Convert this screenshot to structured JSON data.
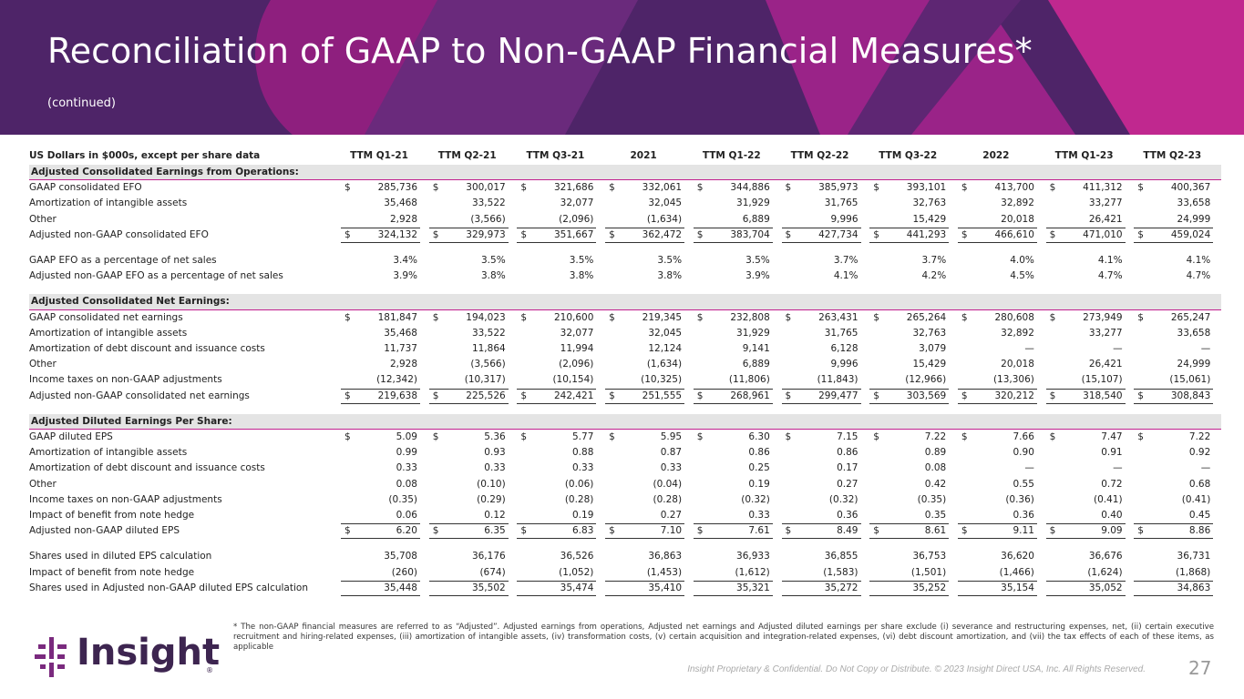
{
  "header": {
    "title": "Reconciliation of GAAP to Non-GAAP Financial Measures*",
    "subtitle": "(continued)"
  },
  "table": {
    "columns": [
      "US Dollars in $000s, except per share data",
      "TTM Q1-21",
      "TTM Q2-21",
      "TTM Q3-21",
      "2021",
      "TTM Q1-22",
      "TTM Q2-22",
      "TTM Q3-22",
      "2022",
      "TTM Q1-23",
      "TTM Q2-23"
    ],
    "groups": [
      {
        "title": "Adjusted Consolidated Earnings from Operations:",
        "rows": [
          {
            "label": "GAAP consolidated EFO",
            "prefix": "$",
            "values": [
              "285,736",
              "300,017",
              "321,686",
              "332,061",
              "344,886",
              "385,973",
              "393,101",
              "413,700",
              "411,312",
              "400,367"
            ]
          },
          {
            "label": "Amortization of intangible assets",
            "values": [
              "35,468",
              "33,522",
              "32,077",
              "32,045",
              "31,929",
              "31,765",
              "32,763",
              "32,892",
              "33,277",
              "33,658"
            ]
          },
          {
            "label": "Other",
            "values": [
              "2,928",
              "(3,566)",
              "(2,096)",
              "(1,634)",
              "6,889",
              "9,996",
              "15,429",
              "20,018",
              "26,421",
              "24,999"
            ]
          },
          {
            "label": "Adjusted non-GAAP consolidated EFO",
            "prefix": "$",
            "total": true,
            "values": [
              "324,132",
              "329,973",
              "351,667",
              "362,472",
              "383,704",
              "427,734",
              "441,293",
              "466,610",
              "471,010",
              "459,024"
            ]
          }
        ]
      },
      {
        "rows": [
          {
            "label": "GAAP EFO as a percentage of net sales",
            "values": [
              "3.4%",
              "3.5%",
              "3.5%",
              "3.5%",
              "3.5%",
              "3.7%",
              "3.7%",
              "4.0%",
              "4.1%",
              "4.1%"
            ]
          },
          {
            "label": "Adjusted non-GAAP EFO as a percentage of net sales",
            "values": [
              "3.9%",
              "3.8%",
              "3.8%",
              "3.8%",
              "3.9%",
              "4.1%",
              "4.2%",
              "4.5%",
              "4.7%",
              "4.7%"
            ]
          }
        ]
      },
      {
        "title": "Adjusted Consolidated Net Earnings:",
        "rows": [
          {
            "label": "GAAP consolidated net earnings",
            "prefix": "$",
            "values": [
              "181,847",
              "194,023",
              "210,600",
              "219,345",
              "232,808",
              "263,431",
              "265,264",
              "280,608",
              "273,949",
              "265,247"
            ]
          },
          {
            "label": "Amortization of intangible assets",
            "values": [
              "35,468",
              "33,522",
              "32,077",
              "32,045",
              "31,929",
              "31,765",
              "32,763",
              "32,892",
              "33,277",
              "33,658"
            ]
          },
          {
            "label": "Amortization of debt discount and issuance costs",
            "values": [
              "11,737",
              "11,864",
              "11,994",
              "12,124",
              "9,141",
              "6,128",
              "3,079",
              "—",
              "—",
              "—"
            ]
          },
          {
            "label": "Other",
            "values": [
              "2,928",
              "(3,566)",
              "(2,096)",
              "(1,634)",
              "6,889",
              "9,996",
              "15,429",
              "20,018",
              "26,421",
              "24,999"
            ]
          },
          {
            "label": "Income taxes on non-GAAP adjustments",
            "values": [
              "(12,342)",
              "(10,317)",
              "(10,154)",
              "(10,325)",
              "(11,806)",
              "(11,843)",
              "(12,966)",
              "(13,306)",
              "(15,107)",
              "(15,061)"
            ]
          },
          {
            "label": "Adjusted non-GAAP consolidated net earnings",
            "prefix": "$",
            "total": true,
            "values": [
              "219,638",
              "225,526",
              "242,421",
              "251,555",
              "268,961",
              "299,477",
              "303,569",
              "320,212",
              "318,540",
              "308,843"
            ]
          }
        ]
      },
      {
        "title": "Adjusted Diluted Earnings Per Share:",
        "rows": [
          {
            "label": "GAAP diluted EPS",
            "prefix": "$",
            "values": [
              "5.09",
              "5.36",
              "5.77",
              "5.95",
              "6.30",
              "7.15",
              "7.22",
              "7.66",
              "7.47",
              "7.22"
            ]
          },
          {
            "label": "Amortization of intangible assets",
            "values": [
              "0.99",
              "0.93",
              "0.88",
              "0.87",
              "0.86",
              "0.86",
              "0.89",
              "0.90",
              "0.91",
              "0.92"
            ]
          },
          {
            "label": "Amortization of debt discount and issuance costs",
            "values": [
              "0.33",
              "0.33",
              "0.33",
              "0.33",
              "0.25",
              "0.17",
              "0.08",
              "—",
              "—",
              "—"
            ]
          },
          {
            "label": "Other",
            "values": [
              "0.08",
              "(0.10)",
              "(0.06)",
              "(0.04)",
              "0.19",
              "0.27",
              "0.42",
              "0.55",
              "0.72",
              "0.68"
            ]
          },
          {
            "label": "Income taxes on non-GAAP adjustments",
            "values": [
              "(0.35)",
              "(0.29)",
              "(0.28)",
              "(0.28)",
              "(0.32)",
              "(0.32)",
              "(0.35)",
              "(0.36)",
              "(0.41)",
              "(0.41)"
            ]
          },
          {
            "label": "Impact of benefit from note hedge",
            "values": [
              "0.06",
              "0.12",
              "0.19",
              "0.27",
              "0.33",
              "0.36",
              "0.35",
              "0.36",
              "0.40",
              "0.45"
            ]
          },
          {
            "label": "Adjusted non-GAAP diluted EPS",
            "prefix": "$",
            "total": true,
            "values": [
              "6.20",
              "6.35",
              "6.83",
              "7.10",
              "7.61",
              "8.49",
              "8.61",
              "9.11",
              "9.09",
              "8.86"
            ]
          }
        ]
      },
      {
        "rows": [
          {
            "label": "Shares used in diluted EPS calculation",
            "values": [
              "35,708",
              "36,176",
              "36,526",
              "36,863",
              "36,933",
              "36,855",
              "36,753",
              "36,620",
              "36,676",
              "36,731"
            ]
          },
          {
            "label": "Impact of benefit from note hedge",
            "values": [
              "(260)",
              "(674)",
              "(1,052)",
              "(1,453)",
              "(1,612)",
              "(1,583)",
              "(1,501)",
              "(1,466)",
              "(1,624)",
              "(1,868)"
            ]
          },
          {
            "label": "Shares used in Adjusted non-GAAP diluted EPS calculation",
            "total": true,
            "values": [
              "35,448",
              "35,502",
              "35,474",
              "35,410",
              "35,321",
              "35,272",
              "35,252",
              "35,154",
              "35,052",
              "34,863"
            ]
          }
        ]
      }
    ]
  },
  "footer": {
    "footnote": "* The non-GAAP financial measures are referred to as “Adjusted”. Adjusted earnings from operations, Adjusted net earnings and Adjusted diluted earnings per share exclude (i) severance and restructuring expenses, net, (ii) certain executive recruitment and hiring-related expenses, (iii) amortization of intangible assets, (iv) transformation costs, (v) certain acquisition and integration-related expenses, (vi) debt discount amortization, and (vii) the tax effects of each of these items, as applicable",
    "logo": "Insight",
    "registered": "®",
    "confidential": "Insight Proprietary & Confidential. Do Not Copy or Distribute. © 2023 Insight Direct USA, Inc. All Rights Reserved.",
    "page_number": "27"
  }
}
